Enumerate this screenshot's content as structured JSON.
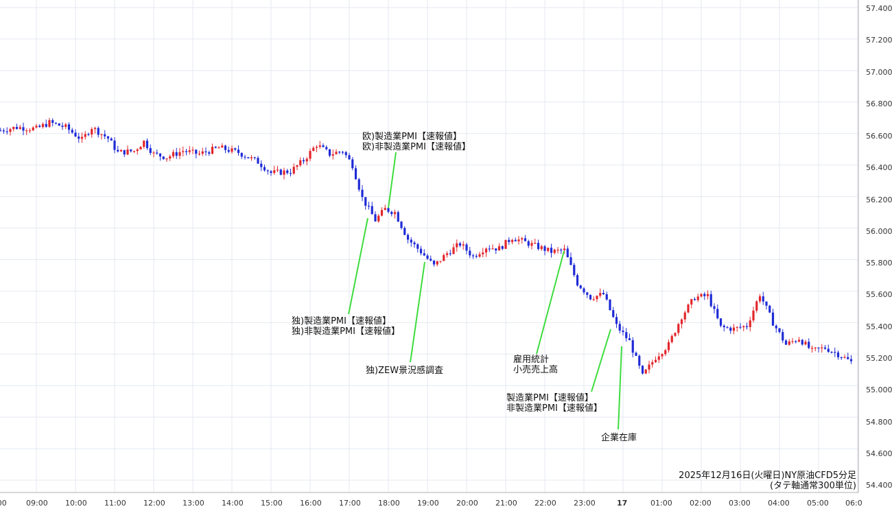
{
  "chart_data": {
    "type": "candlestick",
    "caption": [
      "2025年12月16日(火曜日)NY原油CFD5分足",
      "(タテ軸通常300単位)"
    ],
    "y_ticks": [
      "57.400",
      "57.200",
      "57.000",
      "56.800",
      "56.600",
      "56.400",
      "56.200",
      "56.000",
      "55.800",
      "55.600",
      "55.400",
      "55.200",
      "55.000",
      "54.800",
      "54.600",
      "54.400"
    ],
    "ylim": [
      54.35,
      57.45
    ],
    "x_ticks": [
      ":00",
      "09:00",
      "10:00",
      "11:00",
      "12:00",
      "13:00",
      "14:00",
      "15:00",
      "16:00",
      "17:00",
      "18:00",
      "19:00",
      "20:00",
      "21:00",
      "22:00",
      "23:00",
      "17",
      "01:00",
      "02:00",
      "03:00",
      "04:00",
      "05:00",
      "06:0"
    ],
    "x_tick_bold": "17",
    "colors": {
      "up": "#e3262b",
      "down": "#1f2bd6",
      "annotation_line": "#3ddc3d",
      "grid": "#e4e9f0",
      "axis": "#b0b0b0"
    },
    "series": [
      {
        "x": "08:05",
        "close": 56.62
      },
      {
        "x": "08:30",
        "close": 56.64
      },
      {
        "x": "09:00",
        "close": 56.63
      },
      {
        "x": "09:20",
        "close": 56.67
      },
      {
        "x": "09:45",
        "close": 56.64
      },
      {
        "x": "10:10",
        "close": 56.56
      },
      {
        "x": "10:25",
        "close": 56.64
      },
      {
        "x": "10:50",
        "close": 56.57
      },
      {
        "x": "11:05",
        "close": 56.48
      },
      {
        "x": "11:30",
        "close": 56.49
      },
      {
        "x": "11:45",
        "close": 56.55
      },
      {
        "x": "12:00",
        "close": 56.47
      },
      {
        "x": "12:20",
        "close": 56.45
      },
      {
        "x": "12:45",
        "close": 56.49
      },
      {
        "x": "13:10",
        "close": 56.47
      },
      {
        "x": "13:40",
        "close": 56.51
      },
      {
        "x": "14:10",
        "close": 56.48
      },
      {
        "x": "14:40",
        "close": 56.42
      },
      {
        "x": "15:00",
        "close": 56.35
      },
      {
        "x": "15:30",
        "close": 56.36
      },
      {
        "x": "15:50",
        "close": 56.43
      },
      {
        "x": "16:10",
        "close": 56.53
      },
      {
        "x": "16:30",
        "close": 56.47
      },
      {
        "x": "16:50",
        "close": 56.49
      },
      {
        "x": "17:05",
        "close": 56.4
      },
      {
        "x": "17:20",
        "close": 56.19
      },
      {
        "x": "17:40",
        "close": 56.05
      },
      {
        "x": "17:55",
        "close": 56.12
      },
      {
        "x": "18:10",
        "close": 56.1
      },
      {
        "x": "18:30",
        "close": 55.93
      },
      {
        "x": "18:50",
        "close": 55.85
      },
      {
        "x": "19:10",
        "close": 55.76
      },
      {
        "x": "19:30",
        "close": 55.84
      },
      {
        "x": "19:50",
        "close": 55.9
      },
      {
        "x": "20:10",
        "close": 55.82
      },
      {
        "x": "20:30",
        "close": 55.88
      },
      {
        "x": "20:50",
        "close": 55.87
      },
      {
        "x": "21:10",
        "close": 55.94
      },
      {
        "x": "21:30",
        "close": 55.91
      },
      {
        "x": "21:50",
        "close": 55.88
      },
      {
        "x": "22:10",
        "close": 55.85
      },
      {
        "x": "22:30",
        "close": 55.86
      },
      {
        "x": "22:50",
        "close": 55.65
      },
      {
        "x": "23:10",
        "close": 55.56
      },
      {
        "x": "23:30",
        "close": 55.58
      },
      {
        "x": "23:50",
        "close": 55.38
      },
      {
        "x": "00:10",
        "close": 55.28
      },
      {
        "x": "00:30",
        "close": 55.06
      },
      {
        "x": "00:50",
        "close": 55.18
      },
      {
        "x": "01:10",
        "close": 55.26
      },
      {
        "x": "01:30",
        "close": 55.44
      },
      {
        "x": "01:50",
        "close": 55.56
      },
      {
        "x": "02:10",
        "close": 55.57
      },
      {
        "x": "02:30",
        "close": 55.37
      },
      {
        "x": "02:50",
        "close": 55.36
      },
      {
        "x": "03:10",
        "close": 55.38
      },
      {
        "x": "03:30",
        "close": 55.58
      },
      {
        "x": "03:50",
        "close": 55.4
      },
      {
        "x": "04:10",
        "close": 55.26
      },
      {
        "x": "04:30",
        "close": 55.3
      },
      {
        "x": "04:50",
        "close": 55.22
      },
      {
        "x": "05:10",
        "close": 55.24
      },
      {
        "x": "05:30",
        "close": 55.2
      },
      {
        "x": "05:50",
        "close": 55.15
      }
    ],
    "annotations": [
      {
        "lines": [
          "欧)製造業PMI【速報値】",
          "欧)非製造業PMI【速報値】"
        ]
      },
      {
        "lines": [
          "独)製造業PMI【速報値】",
          "独)非製造業PMI【速報値】"
        ]
      },
      {
        "lines": [
          "独)ZEW景況感調査"
        ]
      },
      {
        "lines": [
          "雇用統計",
          "小売売上高"
        ]
      },
      {
        "lines": [
          "製造業PMI【速報値】",
          "非製造業PMI【速報値】"
        ]
      },
      {
        "lines": [
          "企業在庫"
        ]
      }
    ]
  }
}
